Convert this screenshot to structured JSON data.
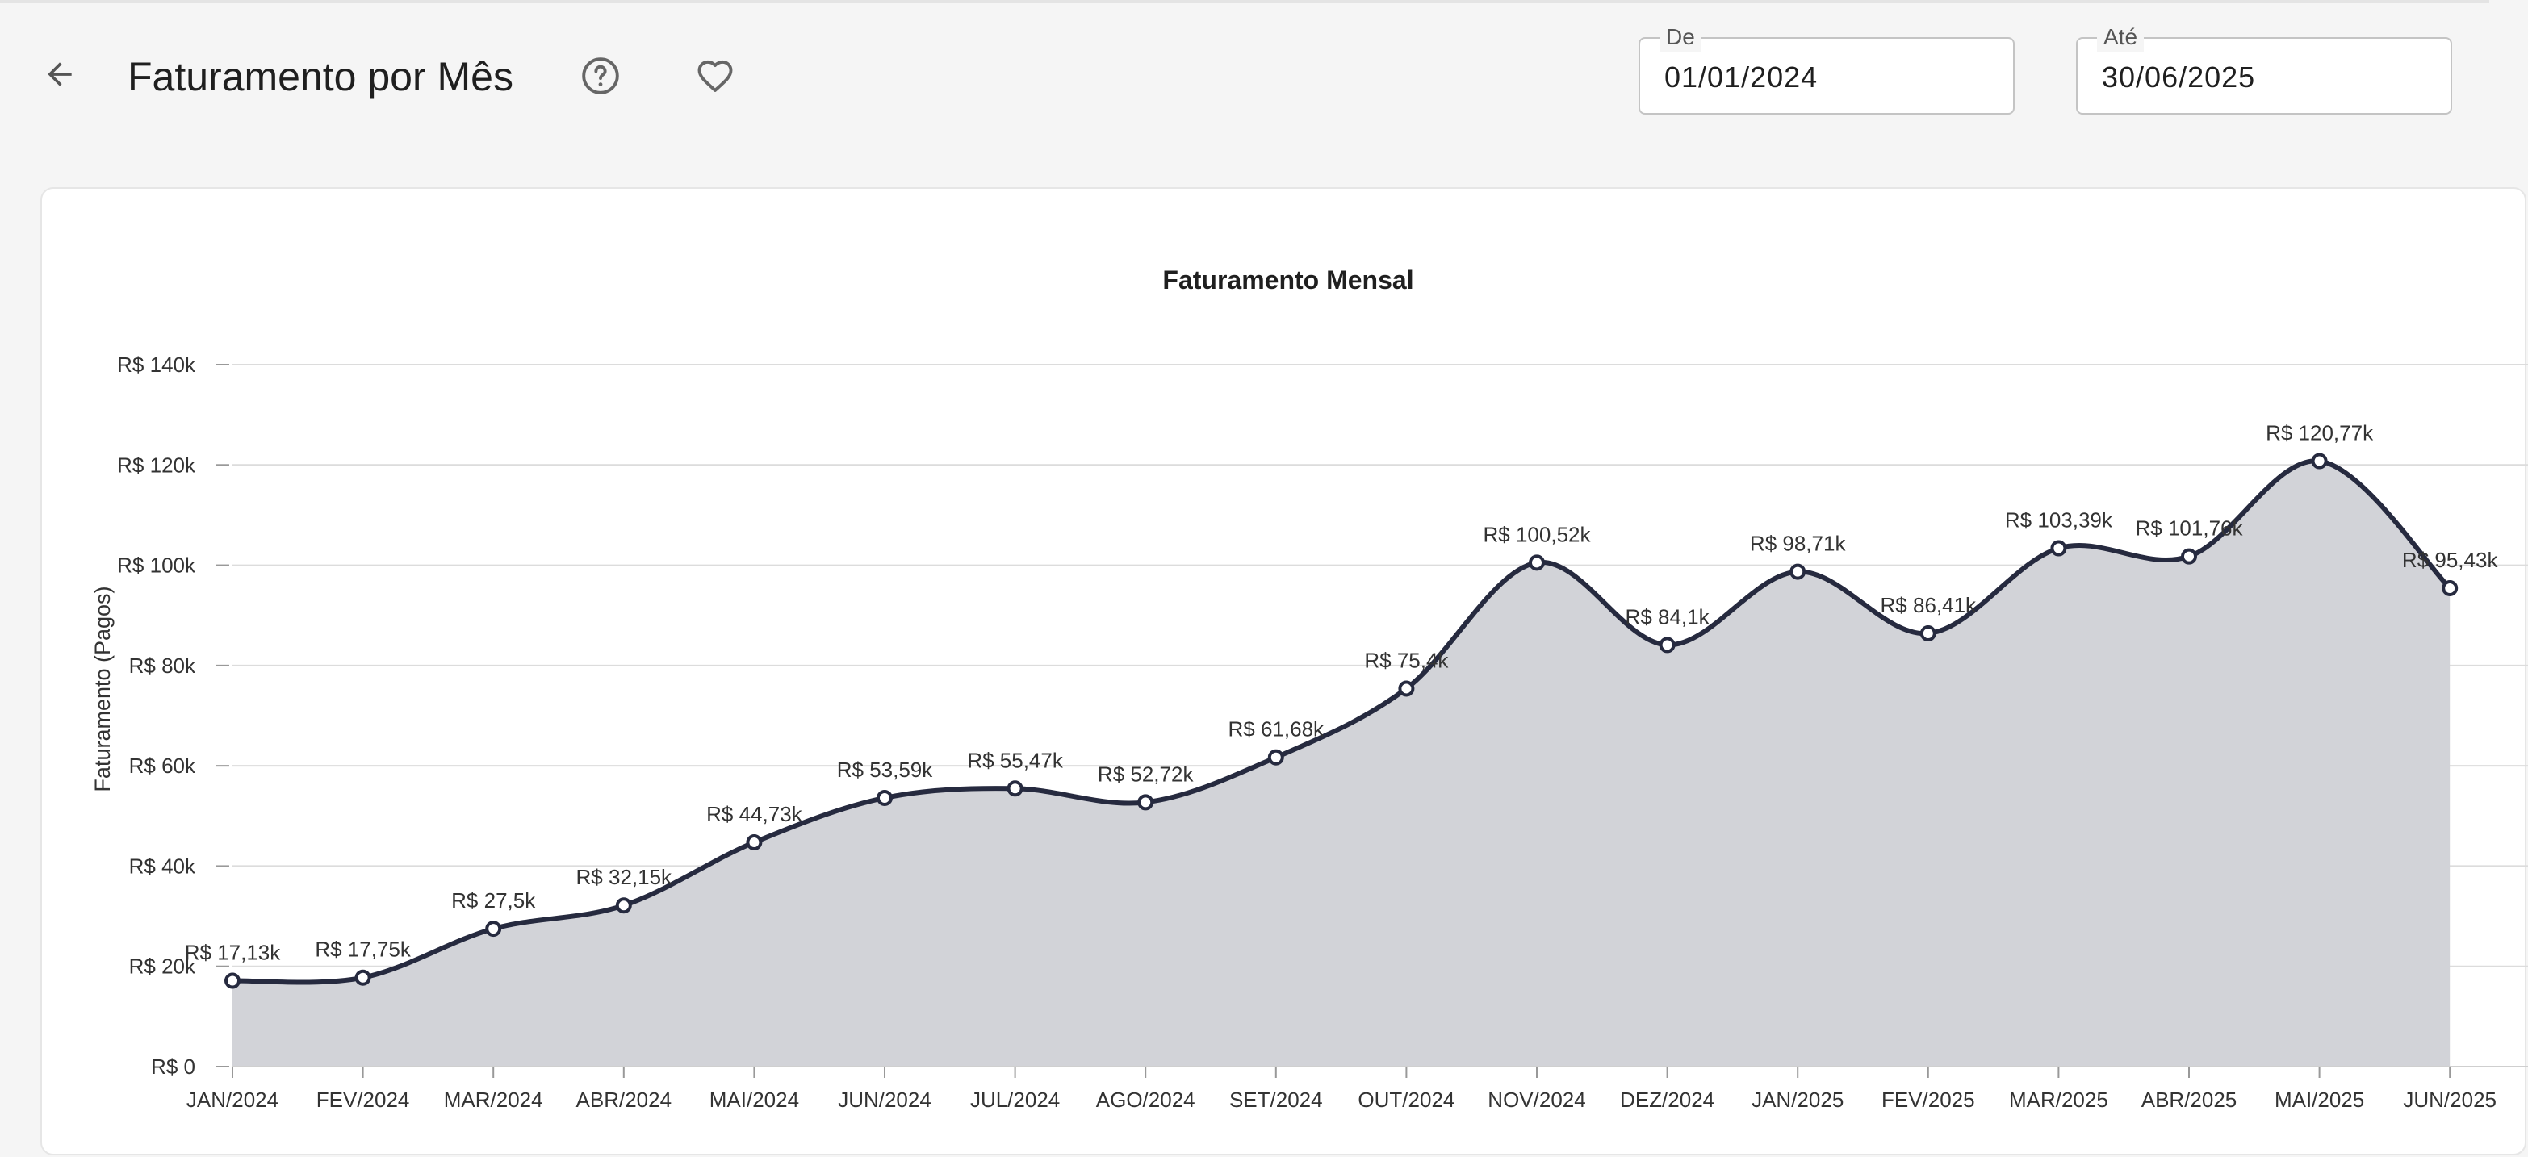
{
  "header": {
    "title": "Faturamento por Mês",
    "back_icon": "arrow-left-icon",
    "help_icon": "help-circle-icon",
    "favorite_icon": "heart-outline-icon"
  },
  "filters": {
    "from_label": "De",
    "from_value": "01/01/2024",
    "to_label": "Até",
    "to_value": "30/06/2025"
  },
  "chart_data": {
    "type": "area",
    "title": "Faturamento Mensal",
    "xlabel": "",
    "ylabel": "Faturamento (Pagos)",
    "ylim": [
      0,
      140000
    ],
    "yticks": [
      0,
      20000,
      40000,
      60000,
      80000,
      100000,
      120000,
      140000
    ],
    "ytick_labels": [
      "R$ 0",
      "R$ 20k",
      "R$ 40k",
      "R$ 60k",
      "R$ 80k",
      "R$ 100k",
      "R$ 120k",
      "R$ 140k"
    ],
    "grid": true,
    "colors": {
      "line": "#262a3f",
      "fill": "#d2d3d8",
      "grid": "#dcdcdc"
    },
    "categories": [
      "JAN/2024",
      "FEV/2024",
      "MAR/2024",
      "ABR/2024",
      "MAI/2024",
      "JUN/2024",
      "JUL/2024",
      "AGO/2024",
      "SET/2024",
      "OUT/2024",
      "NOV/2024",
      "DEZ/2024",
      "JAN/2025",
      "FEV/2025",
      "MAR/2025",
      "ABR/2025",
      "MAI/2025",
      "JUN/2025"
    ],
    "series": [
      {
        "values": [
          17130,
          17750,
          27500,
          32150,
          44730,
          53590,
          55470,
          52720,
          61680,
          75400,
          100520,
          84100,
          98710,
          86410,
          103390,
          101760,
          120770,
          95430
        ],
        "labels": [
          "R$ 17,13k",
          "R$ 17,75k",
          "R$ 27,5k",
          "R$ 32,15k",
          "R$ 44,73k",
          "R$ 53,59k",
          "R$ 55,47k",
          "R$ 52,72k",
          "R$ 61,68k",
          "R$ 75,4k",
          "R$ 100,52k",
          "R$ 84,1k",
          "R$ 98,71k",
          "R$ 86,41k",
          "R$ 103,39k",
          "R$ 101,76k",
          "R$ 120,77k",
          "R$ 95,43k"
        ]
      }
    ]
  }
}
